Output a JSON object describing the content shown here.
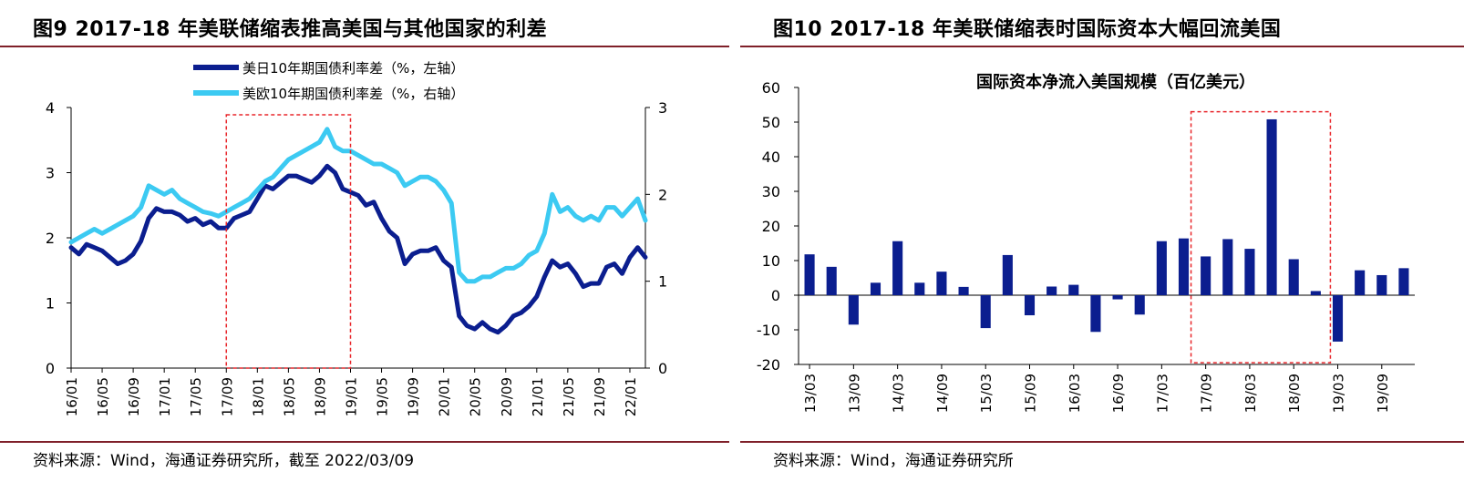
{
  "left": {
    "title": "图9  2017-18 年美联储缩表推高美国与其他国家的利差",
    "source": "资料来源：Wind，海通证券研究所，截至 2022/03/09"
  },
  "right": {
    "title": "图10 2017-18 年美联储缩表时国际资本大幅回流美国",
    "source": "资料来源：Wind，海通证券研究所"
  },
  "chart_data": [
    {
      "type": "line",
      "title": "",
      "legend_placement": "top-center",
      "x_tick_labels": [
        "16/01",
        "16/05",
        "16/09",
        "17/01",
        "17/05",
        "17/09",
        "18/01",
        "18/05",
        "18/09",
        "19/01",
        "19/05",
        "19/09",
        "20/01",
        "20/05",
        "20/09",
        "21/01",
        "21/05",
        "21/09",
        "22/01"
      ],
      "x_start": "2016-01",
      "x_end": "2022-03",
      "ylim_left": [
        0,
        4
      ],
      "ylim_right": [
        0,
        3
      ],
      "yticks_left": [
        "0",
        "1",
        "2",
        "3",
        "4"
      ],
      "yticks_right": [
        "0",
        "1",
        "2",
        "3"
      ],
      "highlight_range": [
        "2017-09",
        "2019-01"
      ],
      "grid": false,
      "series": [
        {
          "name": "美日10年期国债利率差（%，左轴）",
          "axis": "left",
          "color": "#0b1e8f",
          "x": [
            "2016-01",
            "2016-02",
            "2016-03",
            "2016-04",
            "2016-05",
            "2016-06",
            "2016-07",
            "2016-08",
            "2016-09",
            "2016-10",
            "2016-11",
            "2016-12",
            "2017-01",
            "2017-02",
            "2017-03",
            "2017-04",
            "2017-05",
            "2017-06",
            "2017-07",
            "2017-08",
            "2017-09",
            "2017-10",
            "2017-11",
            "2017-12",
            "2018-01",
            "2018-02",
            "2018-03",
            "2018-04",
            "2018-05",
            "2018-06",
            "2018-07",
            "2018-08",
            "2018-09",
            "2018-10",
            "2018-11",
            "2018-12",
            "2019-01",
            "2019-02",
            "2019-03",
            "2019-04",
            "2019-05",
            "2019-06",
            "2019-07",
            "2019-08",
            "2019-09",
            "2019-10",
            "2019-11",
            "2019-12",
            "2020-01",
            "2020-02",
            "2020-03",
            "2020-04",
            "2020-05",
            "2020-06",
            "2020-07",
            "2020-08",
            "2020-09",
            "2020-10",
            "2020-11",
            "2020-12",
            "2021-01",
            "2021-02",
            "2021-03",
            "2021-04",
            "2021-05",
            "2021-06",
            "2021-07",
            "2021-08",
            "2021-09",
            "2021-10",
            "2021-11",
            "2021-12",
            "2022-01",
            "2022-02",
            "2022-03"
          ],
          "values": [
            1.85,
            1.75,
            1.9,
            1.85,
            1.8,
            1.7,
            1.6,
            1.65,
            1.75,
            1.95,
            2.3,
            2.45,
            2.4,
            2.4,
            2.35,
            2.25,
            2.3,
            2.2,
            2.25,
            2.15,
            2.15,
            2.3,
            2.35,
            2.4,
            2.6,
            2.8,
            2.75,
            2.85,
            2.95,
            2.95,
            2.9,
            2.85,
            2.95,
            3.1,
            3.0,
            2.75,
            2.7,
            2.65,
            2.5,
            2.55,
            2.3,
            2.1,
            2.0,
            1.6,
            1.75,
            1.8,
            1.8,
            1.85,
            1.65,
            1.55,
            0.8,
            0.65,
            0.6,
            0.7,
            0.6,
            0.55,
            0.65,
            0.8,
            0.85,
            0.95,
            1.1,
            1.4,
            1.65,
            1.55,
            1.6,
            1.45,
            1.25,
            1.3,
            1.3,
            1.55,
            1.6,
            1.45,
            1.7,
            1.85,
            1.7
          ]
        },
        {
          "name": "美欧10年期国债利率差（%，右轴）",
          "axis": "right",
          "color": "#3ccaf2",
          "x": [
            "2016-01",
            "2016-02",
            "2016-03",
            "2016-04",
            "2016-05",
            "2016-06",
            "2016-07",
            "2016-08",
            "2016-09",
            "2016-10",
            "2016-11",
            "2016-12",
            "2017-01",
            "2017-02",
            "2017-03",
            "2017-04",
            "2017-05",
            "2017-06",
            "2017-07",
            "2017-08",
            "2017-09",
            "2017-10",
            "2017-11",
            "2017-12",
            "2018-01",
            "2018-02",
            "2018-03",
            "2018-04",
            "2018-05",
            "2018-06",
            "2018-07",
            "2018-08",
            "2018-09",
            "2018-10",
            "2018-11",
            "2018-12",
            "2019-01",
            "2019-02",
            "2019-03",
            "2019-04",
            "2019-05",
            "2019-06",
            "2019-07",
            "2019-08",
            "2019-09",
            "2019-10",
            "2019-11",
            "2019-12",
            "2020-01",
            "2020-02",
            "2020-03",
            "2020-04",
            "2020-05",
            "2020-06",
            "2020-07",
            "2020-08",
            "2020-09",
            "2020-10",
            "2020-11",
            "2020-12",
            "2021-01",
            "2021-02",
            "2021-03",
            "2021-04",
            "2021-05",
            "2021-06",
            "2021-07",
            "2021-08",
            "2021-09",
            "2021-10",
            "2021-11",
            "2021-12",
            "2022-01",
            "2022-02",
            "2022-03"
          ],
          "values": [
            1.45,
            1.5,
            1.55,
            1.6,
            1.55,
            1.6,
            1.65,
            1.7,
            1.75,
            1.85,
            2.1,
            2.05,
            2.0,
            2.05,
            1.95,
            1.9,
            1.85,
            1.8,
            1.78,
            1.75,
            1.8,
            1.85,
            1.9,
            1.95,
            2.05,
            2.15,
            2.2,
            2.3,
            2.4,
            2.45,
            2.5,
            2.55,
            2.6,
            2.75,
            2.55,
            2.5,
            2.5,
            2.45,
            2.4,
            2.35,
            2.35,
            2.3,
            2.25,
            2.1,
            2.15,
            2.2,
            2.2,
            2.15,
            2.05,
            1.9,
            1.1,
            1.0,
            1.0,
            1.05,
            1.05,
            1.1,
            1.15,
            1.15,
            1.2,
            1.3,
            1.35,
            1.55,
            2.0,
            1.8,
            1.85,
            1.75,
            1.7,
            1.75,
            1.7,
            1.85,
            1.85,
            1.75,
            1.85,
            1.95,
            1.7
          ]
        }
      ]
    },
    {
      "type": "bar",
      "title": "国际资本净流入美国规模（百亿美元）",
      "color": "#0b1e8f",
      "ylim": [
        -20,
        60
      ],
      "yticks": [
        "-20",
        "-10",
        "0",
        "10",
        "20",
        "30",
        "40",
        "50",
        "60"
      ],
      "x_tick_labels": [
        "13/03",
        "13/09",
        "14/03",
        "14/09",
        "15/03",
        "15/09",
        "16/03",
        "16/09",
        "17/03",
        "17/09",
        "18/03",
        "18/09",
        "19/03",
        "19/09"
      ],
      "categories": [
        "2013-03",
        "2013-06",
        "2013-09",
        "2013-12",
        "2014-03",
        "2014-06",
        "2014-09",
        "2014-12",
        "2015-03",
        "2015-06",
        "2015-09",
        "2015-12",
        "2016-03",
        "2016-06",
        "2016-09",
        "2016-12",
        "2017-03",
        "2017-06",
        "2017-09",
        "2017-12",
        "2018-03",
        "2018-06",
        "2018-09",
        "2018-12",
        "2019-03",
        "2019-06",
        "2019-09",
        "2019-12"
      ],
      "values": [
        11.8,
        8.2,
        -8.5,
        3.6,
        15.6,
        3.6,
        6.8,
        2.4,
        -9.5,
        11.6,
        -5.8,
        2.5,
        3.0,
        -10.6,
        -1.2,
        -5.6,
        15.6,
        16.4,
        11.2,
        16.2,
        13.4,
        50.8,
        10.4,
        1.2,
        -13.4,
        7.2,
        5.8,
        7.8
      ],
      "highlight_range": [
        "2017-09",
        "2018-12"
      ],
      "grid": false
    }
  ]
}
